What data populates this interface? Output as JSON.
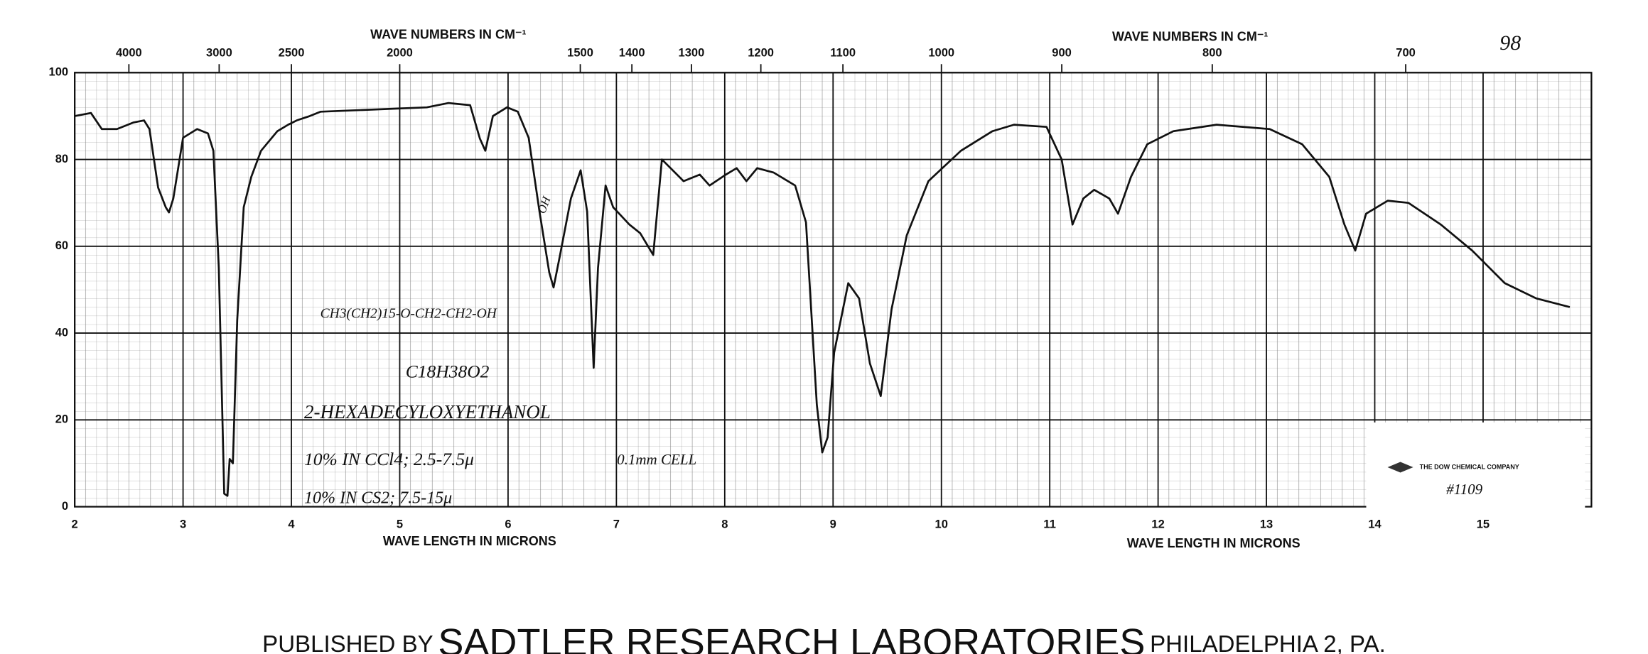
{
  "chart_data": {
    "type": "line",
    "page_number": "98",
    "top_axis_title": "WAVE NUMBERS IN CM⁻¹",
    "bottom_axis_title": "WAVE LENGTH IN MICRONS",
    "xlim": [
      2,
      16
    ],
    "xticks": [
      2,
      3,
      4,
      5,
      6,
      7,
      8,
      9,
      10,
      11,
      12,
      13,
      14,
      15
    ],
    "x2ticks": [
      4000,
      3000,
      2500,
      2000,
      1500,
      1400,
      1300,
      1200,
      1100,
      1000,
      900,
      800,
      700
    ],
    "ylim": [
      0,
      100
    ],
    "yticks": [
      0,
      20,
      40,
      60,
      80,
      100
    ],
    "grid": true,
    "color": "#111111",
    "x": [
      2.0,
      2.15,
      2.25,
      2.39,
      2.54,
      2.64,
      2.69,
      2.77,
      2.84,
      2.87,
      2.91,
      3.0,
      3.13,
      3.23,
      3.28,
      3.33,
      3.38,
      3.41,
      3.43,
      3.46,
      3.5,
      3.56,
      3.63,
      3.72,
      3.87,
      3.97,
      4.05,
      4.17,
      4.27,
      4.76,
      5.25,
      5.45,
      5.65,
      5.74,
      5.79,
      5.86,
      5.99,
      6.09,
      6.19,
      6.29,
      6.38,
      6.42,
      6.48,
      6.58,
      6.67,
      6.73,
      6.79,
      6.83,
      6.9,
      6.97,
      7.12,
      7.22,
      7.34,
      7.42,
      7.52,
      7.62,
      7.77,
      7.86,
      8.01,
      8.11,
      8.2,
      8.3,
      8.45,
      8.65,
      8.75,
      8.85,
      8.9,
      8.95,
      9.01,
      9.14,
      9.24,
      9.34,
      9.44,
      9.54,
      9.68,
      9.88,
      10.18,
      10.47,
      10.67,
      10.97,
      11.11,
      11.21,
      11.31,
      11.41,
      11.55,
      11.63,
      11.75,
      11.9,
      12.14,
      12.54,
      13.03,
      13.33,
      13.58,
      13.72,
      13.82,
      13.92,
      14.12,
      14.31,
      14.61,
      14.9,
      15.2,
      15.49,
      15.8
    ],
    "values": [
      90,
      90.7,
      87,
      87,
      88.5,
      89,
      87,
      73.5,
      69,
      67.8,
      71,
      85,
      87,
      86,
      82,
      55,
      3,
      2.5,
      11,
      10,
      43,
      69,
      76,
      82,
      86.5,
      88,
      89,
      90,
      91,
      91.5,
      92,
      93,
      92.5,
      84.8,
      82,
      90,
      92,
      91,
      85,
      68,
      54,
      50.5,
      58,
      71,
      77.5,
      68,
      32,
      55,
      74,
      69,
      65,
      63,
      58,
      80,
      77.5,
      75,
      76.5,
      74,
      76.5,
      78,
      75,
      78,
      77,
      74,
      65.5,
      23.5,
      12.5,
      16,
      35.5,
      51.5,
      48,
      33,
      25.5,
      45.5,
      62.5,
      75,
      82,
      86.5,
      88,
      87.5,
      80,
      65,
      71,
      73,
      71,
      67.5,
      76,
      83.5,
      86.5,
      88,
      87,
      83.5,
      76,
      65,
      59,
      67.5,
      70.5,
      70,
      65,
      59,
      51.5,
      48,
      46
    ],
    "annotations": [
      "OH",
      "CH3(CH2)15-O-CH2-CH2-OH",
      "C18H38O2",
      "2-HEXADECYLOXYETHANOL",
      "10% IN CCl4; 2.5-7.5μ",
      "0.1mm CELL",
      "10% IN CS2; 7.5-15μ"
    ],
    "stamp": {
      "company": "THE DOW CHEMICAL COMPANY",
      "number": "#1109"
    },
    "footer": {
      "lead": "PUBLISHED BY",
      "name": "SADTLER RESEARCH LABORATORIES",
      "place": "PHILADELPHIA 2, PA."
    }
  }
}
